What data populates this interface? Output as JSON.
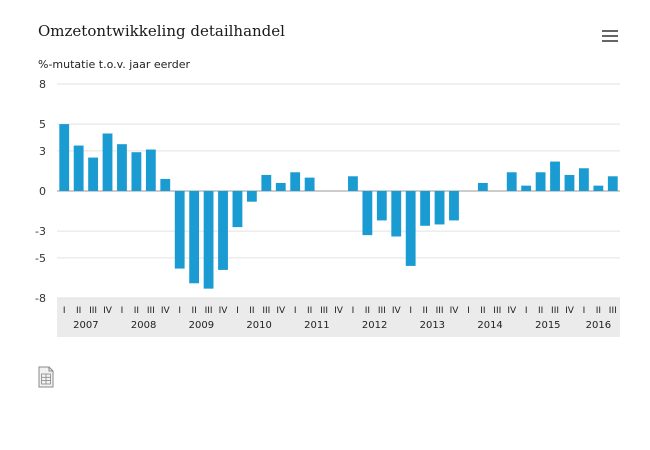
{
  "header": {
    "title": "Omzetontwikkeling detailhandel",
    "subtitle": "%-mutatie t.o.v. jaar eerder",
    "menu_icon": "hamburger-menu-icon"
  },
  "footer": {
    "icon": "data-table-icon"
  },
  "chart_data": {
    "type": "bar",
    "title": "Omzetontwikkeling detailhandel",
    "ylabel": "%-mutatie t.o.v. jaar eerder",
    "ylim": [
      -8,
      8
    ],
    "y_ticks": [
      "8",
      "5",
      "3",
      "0",
      "-3",
      "-5",
      "-8"
    ],
    "y_tick_values": [
      8,
      5,
      3,
      0,
      -3,
      -5,
      -8
    ],
    "grid": true,
    "bar_color": "#1a9bd1",
    "quarters": [
      "I",
      "II",
      "III",
      "IV",
      "I",
      "II",
      "III",
      "IV",
      "I",
      "II",
      "III",
      "IV",
      "I",
      "II",
      "III",
      "IV",
      "I",
      "II",
      "III",
      "IV",
      "I",
      "II",
      "III",
      "IV",
      "I",
      "II",
      "III",
      "IV",
      "I",
      "II",
      "III",
      "IV",
      "I",
      "II",
      "III",
      "IV",
      "I",
      "II",
      "III"
    ],
    "years": [
      "2007",
      "2008",
      "2009",
      "2010",
      "2011",
      "2012",
      "2013",
      "2014",
      "2015",
      "2016"
    ],
    "values": [
      5.0,
      3.4,
      2.5,
      4.3,
      3.5,
      2.9,
      3.1,
      0.9,
      -5.8,
      -6.9,
      -7.3,
      -5.9,
      -2.7,
      -0.8,
      1.2,
      0.6,
      1.4,
      1.0,
      null,
      null,
      1.1,
      -3.3,
      -2.2,
      -3.4,
      -5.6,
      -2.6,
      -2.5,
      -2.2,
      null,
      0.6,
      null,
      1.4,
      0.4,
      1.4,
      2.2,
      1.2,
      1.7,
      0.4,
      1.1
    ]
  }
}
